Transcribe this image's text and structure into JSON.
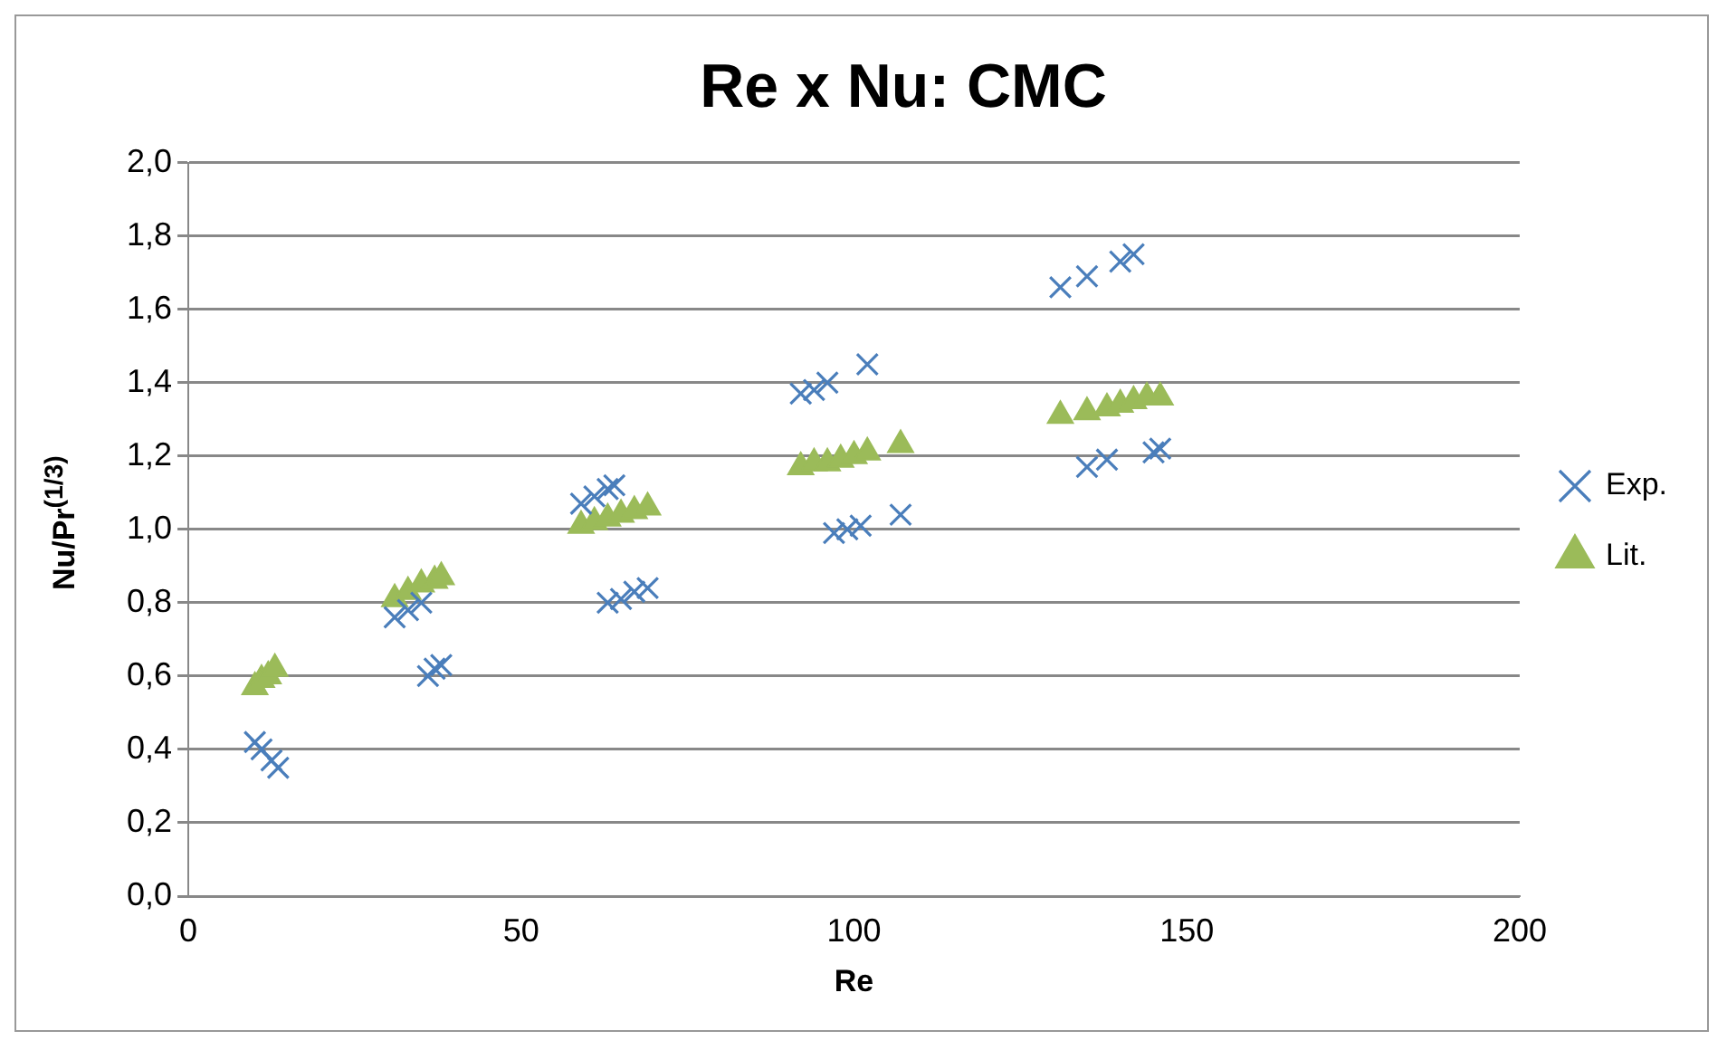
{
  "chart_data": {
    "type": "scatter",
    "title": "Re x Nu: CMC",
    "xlabel": "Re",
    "ylabel": "Nu/Pr$^{(1/3)}$",
    "series": [
      {
        "name": "Exp.",
        "color": "#4a7ebb",
        "marker": "cross",
        "x": [
          10,
          11,
          12.5,
          13.5,
          31,
          33,
          35,
          36,
          37,
          38,
          59,
          61,
          63,
          64,
          63,
          65,
          67,
          69,
          92,
          94,
          96,
          102,
          97,
          99,
          101,
          107,
          131,
          135,
          140,
          142,
          135,
          138,
          145,
          146
        ],
        "values": [
          0.42,
          0.4,
          0.37,
          0.35,
          0.76,
          0.78,
          0.8,
          0.6,
          0.62,
          0.63,
          1.07,
          1.09,
          1.11,
          1.12,
          0.8,
          0.81,
          0.83,
          0.84,
          1.37,
          1.38,
          1.4,
          1.45,
          0.99,
          1.0,
          1.01,
          1.04,
          1.66,
          1.69,
          1.73,
          1.75,
          1.17,
          1.19,
          1.21,
          1.22
        ]
      },
      {
        "name": "Lit.",
        "color": "#9bbb59",
        "marker": "triangle",
        "x": [
          10,
          11,
          12,
          13,
          31,
          33,
          35,
          37,
          38,
          59,
          61,
          63,
          65,
          67,
          69,
          92,
          94,
          96,
          98,
          100,
          102,
          107,
          131,
          135,
          138,
          140,
          142,
          144,
          146
        ],
        "values": [
          0.57,
          0.59,
          0.6,
          0.62,
          0.81,
          0.83,
          0.85,
          0.86,
          0.87,
          1.01,
          1.02,
          1.03,
          1.04,
          1.05,
          1.06,
          1.17,
          1.18,
          1.18,
          1.19,
          1.2,
          1.21,
          1.23,
          1.31,
          1.32,
          1.33,
          1.34,
          1.35,
          1.36,
          1.36
        ]
      }
    ],
    "xlim": [
      0,
      200
    ],
    "xticks": [
      0,
      50,
      100,
      150,
      200
    ],
    "ylim": [
      0,
      2
    ],
    "yticks": [
      {
        "value": 0,
        "label": "0,0"
      },
      {
        "value": 0.2,
        "label": "0,2"
      },
      {
        "value": 0.4,
        "label": "0,4"
      },
      {
        "value": 0.6,
        "label": "0,6"
      },
      {
        "value": 0.8,
        "label": "0,8"
      },
      {
        "value": 1,
        "label": "1,0"
      },
      {
        "value": 1.2,
        "label": "1,2"
      },
      {
        "value": 1.4,
        "label": "1,4"
      },
      {
        "value": 1.6,
        "label": "1,6"
      },
      {
        "value": 1.8,
        "label": "1,8"
      },
      {
        "value": 2,
        "label": "2,0"
      }
    ],
    "grid": "y",
    "legend": "right"
  }
}
